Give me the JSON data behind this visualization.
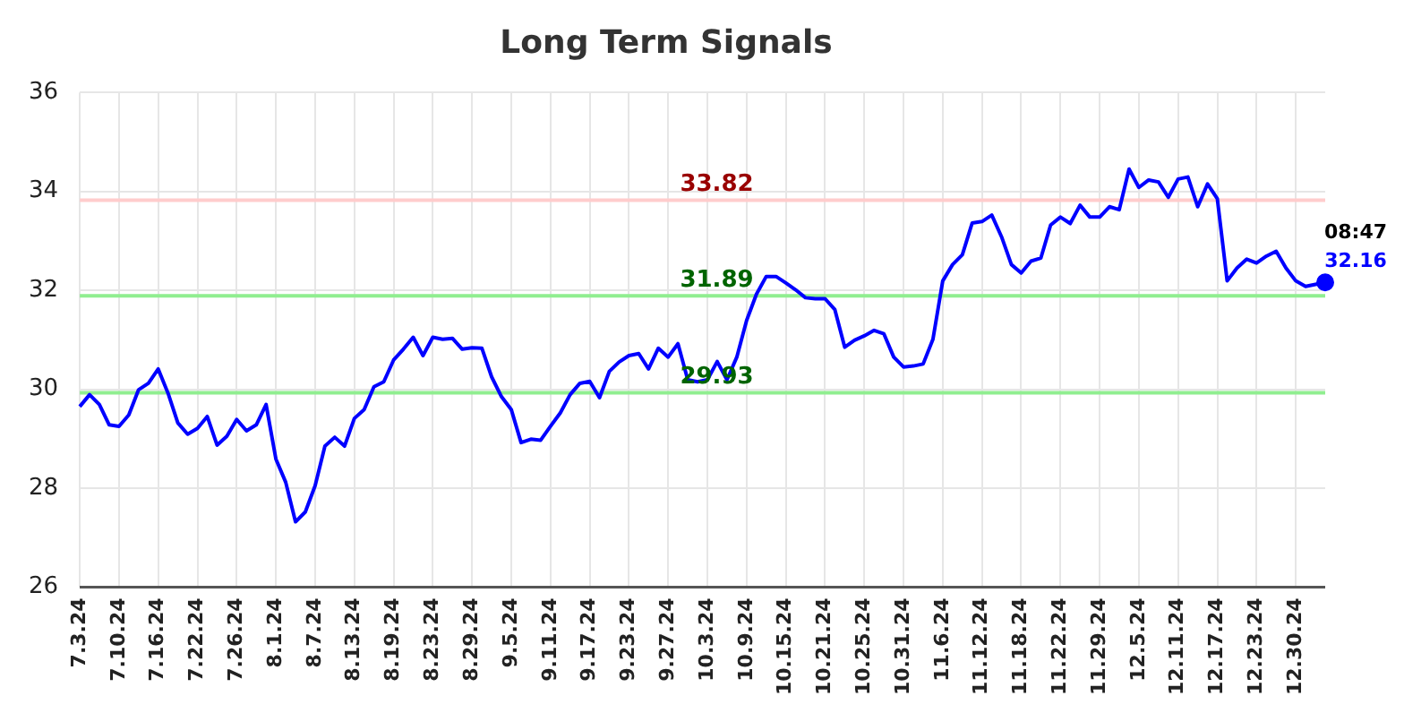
{
  "chart_data": {
    "type": "line",
    "title": "Long Term Signals",
    "categories": [
      "7.3.24",
      null,
      null,
      null,
      "7.10.24",
      null,
      null,
      null,
      "7.16.24",
      null,
      null,
      null,
      "7.22.24",
      null,
      null,
      null,
      "7.26.24",
      null,
      null,
      null,
      "8.1.24",
      null,
      null,
      null,
      "8.7.24",
      null,
      null,
      null,
      "8.13.24",
      null,
      null,
      null,
      "8.19.24",
      null,
      null,
      null,
      "8.23.24",
      null,
      null,
      null,
      "8.29.24",
      null,
      null,
      null,
      "9.5.24",
      null,
      null,
      null,
      "9.11.24",
      null,
      null,
      null,
      "9.17.24",
      null,
      null,
      null,
      "9.23.24",
      null,
      null,
      null,
      "9.27.24",
      null,
      null,
      null,
      "10.3.24",
      null,
      null,
      null,
      "10.9.24",
      null,
      null,
      null,
      "10.15.24",
      null,
      null,
      null,
      "10.21.24",
      null,
      null,
      null,
      "10.25.24",
      null,
      null,
      null,
      "10.31.24",
      null,
      null,
      null,
      "11.6.24",
      null,
      null,
      null,
      "11.12.24",
      null,
      null,
      null,
      "11.18.24",
      null,
      null,
      null,
      "11.22.24",
      null,
      null,
      null,
      "11.29.24",
      null,
      null,
      null,
      "12.5.24",
      null,
      null,
      null,
      "12.11.24",
      null,
      null,
      null,
      "12.17.24",
      null,
      null,
      null,
      "12.23.24",
      null,
      null,
      null,
      "12.30.24",
      null,
      null,
      null
    ],
    "series": [
      {
        "color": "#0000ff",
        "values": [
          29.65,
          29.89,
          29.69,
          29.28,
          29.25,
          29.48,
          29.99,
          30.12,
          30.41,
          29.92,
          29.32,
          29.09,
          29.21,
          29.45,
          28.87,
          29.05,
          29.39,
          29.16,
          29.28,
          29.69,
          28.59,
          28.12,
          27.32,
          27.52,
          28.05,
          28.85,
          29.03,
          28.85,
          29.41,
          29.59,
          30.05,
          30.15,
          30.59,
          30.81,
          31.05,
          30.68,
          31.05,
          31.01,
          31.03,
          30.81,
          30.84,
          30.83,
          30.25,
          29.85,
          29.59,
          28.92,
          28.99,
          28.97,
          29.25,
          29.52,
          29.89,
          30.12,
          30.16,
          29.83,
          30.36,
          30.55,
          30.68,
          30.72,
          30.41,
          30.83,
          30.65,
          30.92,
          30.19,
          30.15,
          30.19,
          30.56,
          30.19,
          30.65,
          31.39,
          31.92,
          32.28,
          32.28,
          32.15,
          32.01,
          31.85,
          31.83,
          31.83,
          31.61,
          30.85,
          30.99,
          31.08,
          31.19,
          31.12,
          30.65,
          30.45,
          30.47,
          30.51,
          31.01,
          32.19,
          32.52,
          32.72,
          33.36,
          33.39,
          33.52,
          33.08,
          32.52,
          32.35,
          32.59,
          32.65,
          33.32,
          33.48,
          33.35,
          33.72,
          33.48,
          33.48,
          33.69,
          33.63,
          34.45,
          34.08,
          34.23,
          34.19,
          33.88,
          34.25,
          34.29,
          33.69,
          34.15,
          33.85,
          32.19,
          32.45,
          32.63,
          32.55,
          32.69,
          32.79,
          32.45,
          32.19,
          32.08,
          32.12,
          32.16
        ],
        "value_labels": [
          null,
          null,
          null,
          null,
          null,
          null,
          null,
          null,
          null,
          null,
          null,
          null,
          null,
          null,
          null,
          null,
          null,
          null,
          null,
          null,
          null,
          null,
          null,
          null,
          null,
          null,
          null,
          null,
          null,
          null,
          null,
          null,
          null,
          null,
          null,
          null,
          null,
          null,
          null,
          null,
          null,
          null,
          null,
          null,
          null,
          null,
          null,
          null,
          null,
          null,
          null,
          null,
          null,
          null,
          null,
          null,
          null,
          null,
          null,
          null,
          null,
          null,
          null,
          null,
          null,
          null,
          null,
          null,
          null,
          null,
          null,
          null,
          null,
          null,
          null,
          null,
          null,
          null,
          null,
          null,
          null,
          null,
          null,
          null,
          null,
          null,
          null,
          null,
          null,
          null,
          null,
          null,
          null,
          null,
          null,
          null,
          null,
          null,
          null,
          null,
          null,
          null,
          null,
          null,
          null,
          null,
          null,
          null,
          null,
          null,
          null,
          null,
          null,
          null,
          null,
          null,
          null,
          null,
          null,
          null,
          null,
          null,
          null,
          null,
          null,
          null,
          null,
          "32.16"
        ]
      }
    ],
    "ylim": [
      26,
      36
    ],
    "yticks": [
      26,
      28,
      30,
      32,
      34,
      36
    ],
    "grid": true,
    "legend": false,
    "ref_lines": [
      {
        "axis": "y",
        "value": 33.82,
        "label": "33.82",
        "color": "#ffcccc"
      },
      {
        "axis": "y",
        "value": 31.89,
        "label": "31.89",
        "color": "#90ee90"
      },
      {
        "axis": "y",
        "value": 29.93,
        "label": "29.93",
        "color": "#90ee90"
      }
    ],
    "annotations": [
      "08:47"
    ]
  }
}
